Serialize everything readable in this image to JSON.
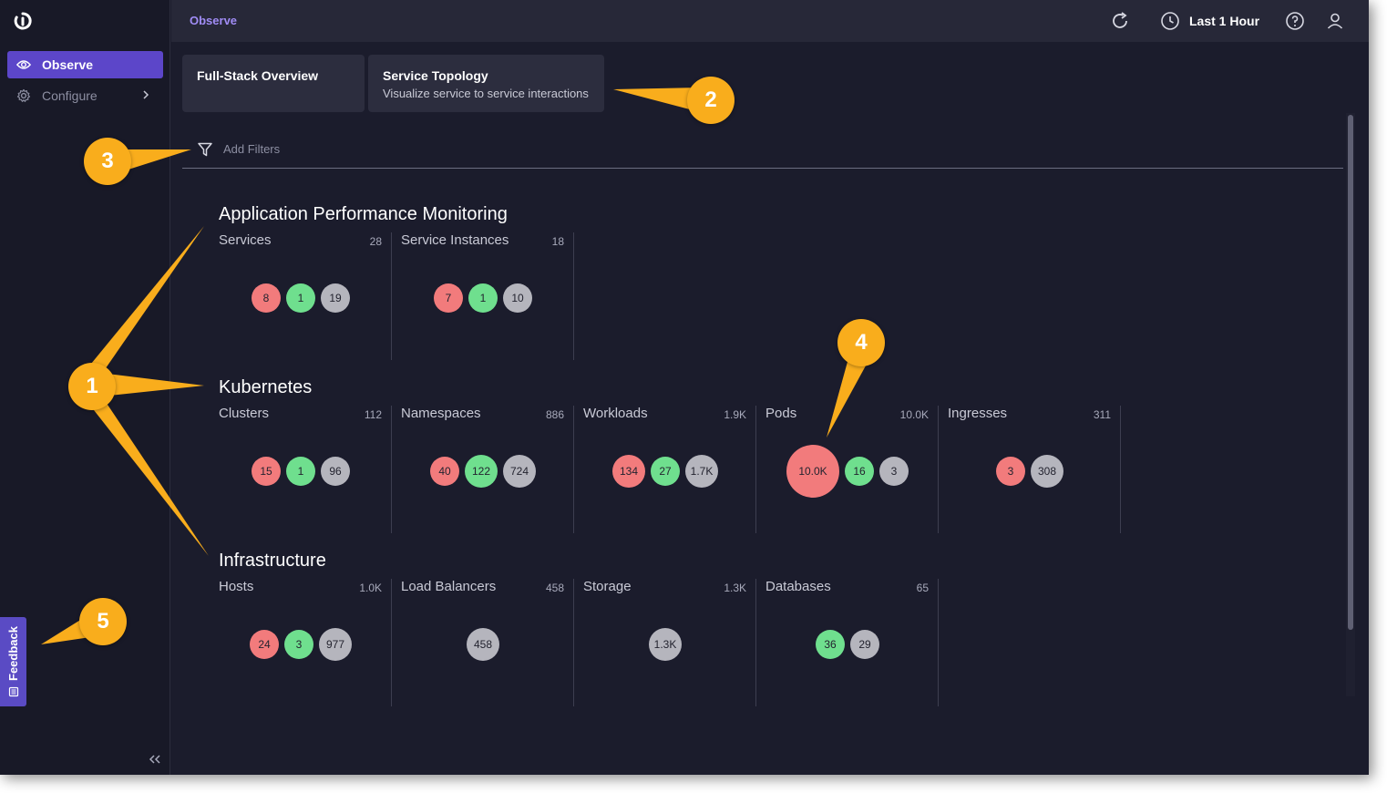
{
  "topbar": {
    "breadcrumb": "Observe",
    "time_range": "Last 1 Hour"
  },
  "sidebar": {
    "items": [
      {
        "label": "Observe",
        "icon": "eye-icon",
        "active": true
      },
      {
        "label": "Configure",
        "icon": "gear-icon",
        "active": false
      }
    ],
    "feedback_label": "Feedback"
  },
  "tabs": [
    {
      "title": "Full-Stack Overview",
      "subtitle": ""
    },
    {
      "title": "Service Topology",
      "subtitle": "Visualize service to service interactions"
    }
  ],
  "filter": {
    "placeholder": "Add Filters"
  },
  "colors": {
    "critical": "#f27b7c",
    "normal": "#6fdf8e",
    "unknown": "#b5b5bd",
    "accent": "#5c46c9",
    "callout": "#f9ad1c"
  },
  "sections": [
    {
      "title": "Application Performance Monitoring",
      "cards": [
        {
          "name": "Services",
          "count": "28",
          "bubbles": [
            {
              "v": "8",
              "s": "crit"
            },
            {
              "v": "1",
              "s": "ok"
            },
            {
              "v": "19",
              "s": "none"
            }
          ]
        },
        {
          "name": "Service Instances",
          "count": "18",
          "bubbles": [
            {
              "v": "7",
              "s": "crit"
            },
            {
              "v": "1",
              "s": "ok"
            },
            {
              "v": "10",
              "s": "none"
            }
          ]
        }
      ]
    },
    {
      "title": "Kubernetes",
      "cards": [
        {
          "name": "Clusters",
          "count": "112",
          "bubbles": [
            {
              "v": "15",
              "s": "crit"
            },
            {
              "v": "1",
              "s": "ok"
            },
            {
              "v": "96",
              "s": "none"
            }
          ]
        },
        {
          "name": "Namespaces",
          "count": "886",
          "bubbles": [
            {
              "v": "40",
              "s": "crit"
            },
            {
              "v": "122",
              "s": "ok"
            },
            {
              "v": "724",
              "s": "none"
            }
          ]
        },
        {
          "name": "Workloads",
          "count": "1.9K",
          "bubbles": [
            {
              "v": "134",
              "s": "crit"
            },
            {
              "v": "27",
              "s": "ok"
            },
            {
              "v": "1.7K",
              "s": "none"
            }
          ]
        },
        {
          "name": "Pods",
          "count": "10.0K",
          "bubbles": [
            {
              "v": "10.0K",
              "s": "crit",
              "big": true
            },
            {
              "v": "16",
              "s": "ok"
            },
            {
              "v": "3",
              "s": "none"
            }
          ]
        },
        {
          "name": "Ingresses",
          "count": "311",
          "bubbles": [
            {
              "v": "3",
              "s": "crit"
            },
            {
              "v": "308",
              "s": "none"
            }
          ]
        }
      ]
    },
    {
      "title": "Infrastructure",
      "cards": [
        {
          "name": "Hosts",
          "count": "1.0K",
          "bubbles": [
            {
              "v": "24",
              "s": "crit"
            },
            {
              "v": "3",
              "s": "ok"
            },
            {
              "v": "977",
              "s": "none"
            }
          ]
        },
        {
          "name": "Load Balancers",
          "count": "458",
          "bubbles": [
            {
              "v": "458",
              "s": "none"
            }
          ]
        },
        {
          "name": "Storage",
          "count": "1.3K",
          "bubbles": [
            {
              "v": "1.3K",
              "s": "none"
            }
          ]
        },
        {
          "name": "Databases",
          "count": "65",
          "bubbles": [
            {
              "v": "36",
              "s": "ok"
            },
            {
              "v": "29",
              "s": "none"
            }
          ]
        }
      ]
    }
  ],
  "callouts": [
    "1",
    "2",
    "3",
    "4",
    "5"
  ]
}
